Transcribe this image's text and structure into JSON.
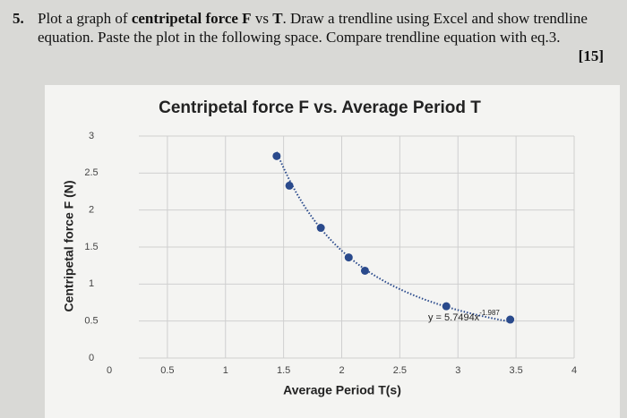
{
  "question": {
    "number": "5.",
    "parts": [
      "Plot a graph of ",
      "centripetal force F",
      " vs ",
      "T",
      ". Draw a trendline using Excel and show trendline equation. Paste the plot in the following space. Compare trendline equation with eq.3."
    ],
    "marks": "[15]"
  },
  "chart_data": {
    "type": "scatter",
    "title": "Centripetal force F vs. Average Period T",
    "x_label": "Average Period T(s)",
    "y_label": "Centripetal force F (N)",
    "x": [
      1.44,
      1.55,
      1.82,
      2.06,
      2.2,
      2.9,
      3.45
    ],
    "series": [
      {
        "color": "#2a4a8c",
        "values": [
          2.73,
          2.33,
          1.76,
          1.36,
          1.18,
          0.7,
          0.52
        ]
      }
    ],
    "xlim": [
      0,
      4
    ],
    "xticks": [
      0,
      0.5,
      1,
      1.5,
      2,
      2.5,
      3,
      3.5,
      4
    ],
    "ylim": [
      0,
      3
    ],
    "yticks": [
      0,
      0.5,
      1,
      1.5,
      2,
      2.5,
      3
    ],
    "grid": true,
    "trendline": {
      "coefficient": 5.7494,
      "power": -1.987,
      "label": "y = 5.7494x",
      "label_power": "-1.987"
    }
  }
}
